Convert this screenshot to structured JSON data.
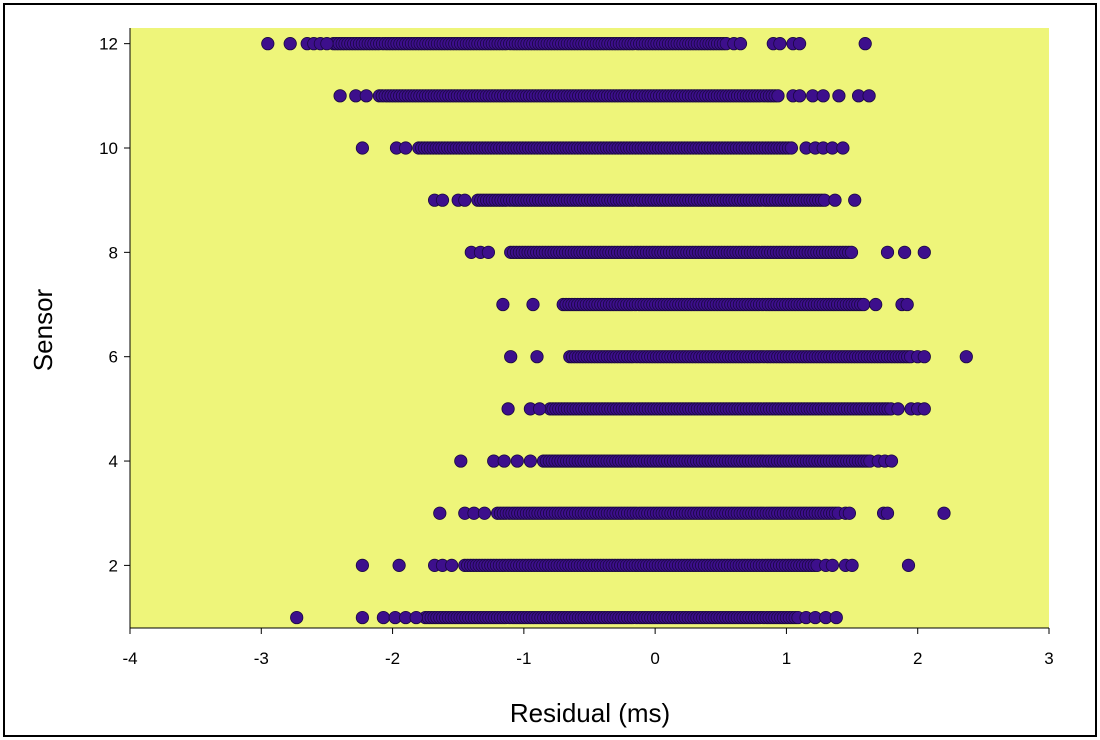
{
  "chart_data": {
    "type": "scatter",
    "title": "",
    "xlabel": "Residual (ms)",
    "ylabel": "Sensor",
    "xlim": [
      -4,
      3
    ],
    "ylim": [
      0.8,
      12.3
    ],
    "xticks": [
      -4,
      -3,
      -2,
      -1,
      0,
      1,
      2,
      3
    ],
    "yticks": [
      2,
      4,
      6,
      8,
      10,
      12
    ],
    "grid": false,
    "legend": "none",
    "colors": {
      "plot_background": "#eef57a",
      "marker_fill": "#3d0f8c",
      "marker_edge": "#1a0840",
      "axis": "#000000"
    },
    "series": [
      {
        "sensors": [
          {
            "y": 12,
            "dense": [
              -2.45,
              0.55
            ],
            "x": [
              -2.95,
              -2.78,
              -2.65,
              -2.6,
              -2.55,
              -2.5,
              0.6,
              0.65,
              0.9,
              0.95,
              1.05,
              1.1,
              1.6
            ]
          },
          {
            "y": 11,
            "dense": [
              -2.1,
              0.95
            ],
            "x": [
              -2.4,
              -2.28,
              -2.2,
              1.05,
              1.1,
              1.2,
              1.28,
              1.4,
              1.55,
              1.63
            ]
          },
          {
            "y": 10,
            "dense": [
              -1.8,
              1.05
            ],
            "x": [
              -2.23,
              -1.97,
              -1.9,
              1.15,
              1.22,
              1.28,
              1.35,
              1.43
            ]
          },
          {
            "y": 9,
            "dense": [
              -1.35,
              1.3
            ],
            "x": [
              -1.68,
              -1.62,
              -1.5,
              -1.45,
              1.37,
              1.52
            ]
          },
          {
            "y": 8,
            "dense": [
              -1.1,
              1.5
            ],
            "x": [
              -1.4,
              -1.33,
              -1.27,
              1.77,
              1.9,
              2.05
            ]
          },
          {
            "y": 7,
            "dense": [
              -0.7,
              1.6
            ],
            "x": [
              -1.16,
              -0.93,
              1.68,
              1.88,
              1.92
            ]
          },
          {
            "y": 6,
            "dense": [
              -0.65,
              1.95
            ],
            "x": [
              -1.1,
              -0.9,
              2.0,
              2.05,
              2.37
            ]
          },
          {
            "y": 5,
            "dense": [
              -0.8,
              1.8
            ],
            "x": [
              -1.12,
              -0.95,
              -0.88,
              1.85,
              1.95,
              2.0,
              2.05
            ]
          },
          {
            "y": 4,
            "dense": [
              -0.85,
              1.65
            ],
            "x": [
              -1.48,
              -1.23,
              -1.15,
              -1.05,
              -0.95,
              1.7,
              1.75,
              1.8
            ]
          },
          {
            "y": 3,
            "dense": [
              -1.2,
              1.4
            ],
            "x": [
              -1.64,
              -1.45,
              -1.38,
              -1.3,
              1.45,
              1.48,
              1.74,
              1.77,
              2.2
            ]
          },
          {
            "y": 2,
            "dense": [
              -1.45,
              1.25
            ],
            "x": [
              -2.23,
              -1.95,
              -1.68,
              -1.62,
              -1.55,
              1.3,
              1.35,
              1.45,
              1.5,
              1.93
            ]
          },
          {
            "y": 1,
            "dense": [
              -1.75,
              1.1
            ],
            "x": [
              -2.73,
              -2.23,
              -2.07,
              -1.98,
              -1.9,
              -1.82,
              1.15,
              1.22,
              1.3,
              1.38
            ]
          }
        ]
      }
    ]
  }
}
